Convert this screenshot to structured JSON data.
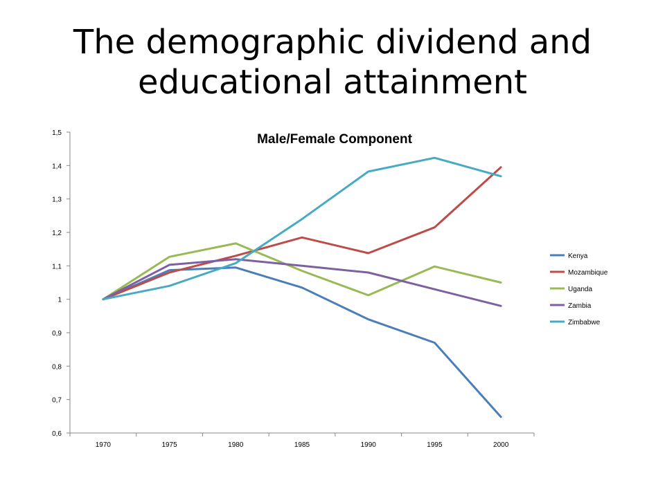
{
  "slide": {
    "title": "The demographic dividend and educational attainment"
  },
  "chart_data": {
    "type": "line",
    "title": "Male/Female Component",
    "xlabel": "",
    "ylabel": "",
    "categories": [
      "1970",
      "1975",
      "1980",
      "1985",
      "1990",
      "1995",
      "2000"
    ],
    "ylim": [
      0.6,
      1.5
    ],
    "ytick_step": 0.1,
    "ytick_labels": [
      "0,6",
      "0,7",
      "0,8",
      "0,9",
      "1",
      "1,1",
      "1,2",
      "1,3",
      "1,4",
      "1,5"
    ],
    "grid": false,
    "legend_position": "right",
    "series": [
      {
        "name": "Kenya",
        "color": "#4a7ebb",
        "values": [
          1.0,
          1.087,
          1.095,
          1.035,
          0.94,
          0.87,
          0.648
        ]
      },
      {
        "name": "Mozambique",
        "color": "#be4b48",
        "values": [
          1.0,
          1.08,
          1.13,
          1.185,
          1.138,
          1.215,
          1.395
        ]
      },
      {
        "name": "Uganda",
        "color": "#98b954",
        "values": [
          1.0,
          1.127,
          1.167,
          1.085,
          1.012,
          1.098,
          1.05
        ]
      },
      {
        "name": "Zambia",
        "color": "#7d60a0",
        "values": [
          1.0,
          1.103,
          1.12,
          1.1,
          1.08,
          1.03,
          0.98
        ]
      },
      {
        "name": "Zimbabwe",
        "color": "#46aac5",
        "values": [
          1.0,
          1.04,
          1.108,
          1.24,
          1.382,
          1.423,
          1.368
        ]
      }
    ]
  }
}
